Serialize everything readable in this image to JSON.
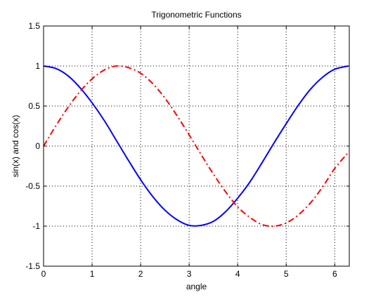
{
  "chart_data": {
    "type": "line",
    "title": "Trigonometric Functions",
    "xlabel": "angle",
    "ylabel": "sin(x) and cos(x)",
    "xlim": [
      0,
      6.3
    ],
    "ylim": [
      -1.5,
      1.5
    ],
    "x_ticks": [
      0,
      1,
      2,
      3,
      4,
      5,
      6
    ],
    "y_ticks": [
      -1.5,
      -1,
      -0.5,
      0,
      0.5,
      1,
      1.5
    ],
    "x_tick_labels": [
      "0",
      "1",
      "2",
      "3",
      "4",
      "5",
      "6"
    ],
    "y_tick_labels": [
      "-1.5",
      "-1",
      "-0.5",
      "0",
      "0.5",
      "1",
      "1.5"
    ],
    "grid": true,
    "legend": "none",
    "series": [
      {
        "style": "solid",
        "color": "#0000ff",
        "x": [
          0,
          0.25,
          0.5,
          0.75,
          1,
          1.25,
          1.5,
          1.75,
          2,
          2.25,
          2.5,
          2.75,
          3,
          3.25,
          3.5,
          3.75,
          4,
          4.25,
          4.5,
          4.75,
          5,
          5.25,
          5.5,
          5.75,
          6,
          6.28
        ],
        "y": [
          1,
          0.97,
          0.88,
          0.73,
          0.54,
          0.32,
          0.07,
          -0.18,
          -0.42,
          -0.63,
          -0.8,
          -0.92,
          -0.99,
          -0.99,
          -0.94,
          -0.82,
          -0.65,
          -0.45,
          -0.21,
          0.04,
          0.28,
          0.51,
          0.71,
          0.86,
          0.96,
          1
        ]
      },
      {
        "style": "dash-dot",
        "color": "#ff0000",
        "x": [
          0,
          0.25,
          0.5,
          0.75,
          1,
          1.25,
          1.5,
          1.75,
          2,
          2.25,
          2.5,
          2.75,
          3,
          3.25,
          3.5,
          3.75,
          4,
          4.25,
          4.5,
          4.75,
          5,
          5.25,
          5.5,
          5.75,
          6,
          6.28
        ],
        "y": [
          0,
          0.25,
          0.48,
          0.68,
          0.84,
          0.95,
          1,
          0.98,
          0.91,
          0.78,
          0.6,
          0.38,
          0.14,
          -0.11,
          -0.35,
          -0.57,
          -0.76,
          -0.89,
          -0.98,
          -1,
          -0.96,
          -0.86,
          -0.71,
          -0.51,
          -0.28,
          -0.08
        ]
      }
    ]
  }
}
